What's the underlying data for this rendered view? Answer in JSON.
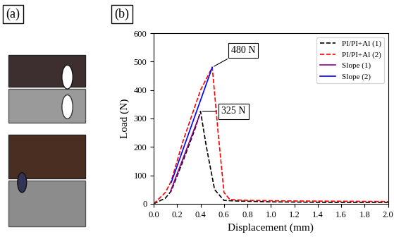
{
  "panel_labels": [
    "(a)",
    "(b)"
  ],
  "chart_data": {
    "type": "line",
    "x_label": "Displacement (mm)",
    "y_label": "Load (N)",
    "xlim": [
      0,
      2.0
    ],
    "xticks": [
      {
        "value": 0,
        "label": "0.0"
      },
      {
        "value": 0.2,
        "label": "0.2"
      },
      {
        "value": 0.4,
        "label": "0.4"
      },
      {
        "value": 0.6,
        "label": "0.6"
      },
      {
        "value": 0.8,
        "label": "0.8"
      },
      {
        "value": 1.0,
        "label": "1.0"
      },
      {
        "value": 1.2,
        "label": "1.2"
      },
      {
        "value": 1.4,
        "label": "1.4"
      },
      {
        "value": 1.6,
        "label": "1.6"
      },
      {
        "value": 1.8,
        "label": "1.8"
      },
      {
        "value": 2.0,
        "label": "2.0"
      }
    ],
    "ylim": [
      0,
      600
    ],
    "yticks": [
      0,
      100,
      200,
      300,
      400,
      500,
      600
    ],
    "legend": "upper right",
    "series": [
      {
        "name": "PI/PI+Al (1)",
        "color": "#000000",
        "line_style": "dashed",
        "x": [
          0,
          0.1,
          0.15,
          0.25,
          0.35,
          0.4,
          0.45,
          0.52,
          0.6,
          0.7,
          1.0,
          1.5,
          2.0
        ],
        "values": [
          0,
          20,
          45,
          150,
          260,
          325,
          200,
          50,
          12,
          10,
          7,
          5,
          5
        ]
      },
      {
        "name": "PI/PI+Al (2)",
        "color": "#ff0000",
        "line_style": "dashed",
        "x": [
          0,
          0.1,
          0.15,
          0.25,
          0.4,
          0.5,
          0.55,
          0.6,
          0.65,
          0.8,
          1.2,
          2.0
        ],
        "values": [
          0,
          40,
          80,
          220,
          400,
          480,
          250,
          40,
          15,
          12,
          10,
          8
        ]
      },
      {
        "name": "Slope (1)",
        "color": "#8b008b",
        "line_style": "solid",
        "x": [
          0.14,
          0.39
        ],
        "values": [
          40,
          310
        ]
      },
      {
        "name": "Slope (2)",
        "color": "#0000ff",
        "line_style": "solid",
        "x": [
          0.15,
          0.5
        ],
        "values": [
          75,
          480
        ]
      }
    ],
    "annotations": [
      {
        "text": "480 N",
        "x": 0.5,
        "y": 480
      },
      {
        "text": "325 N",
        "x": 0.4,
        "y": 325
      }
    ]
  }
}
